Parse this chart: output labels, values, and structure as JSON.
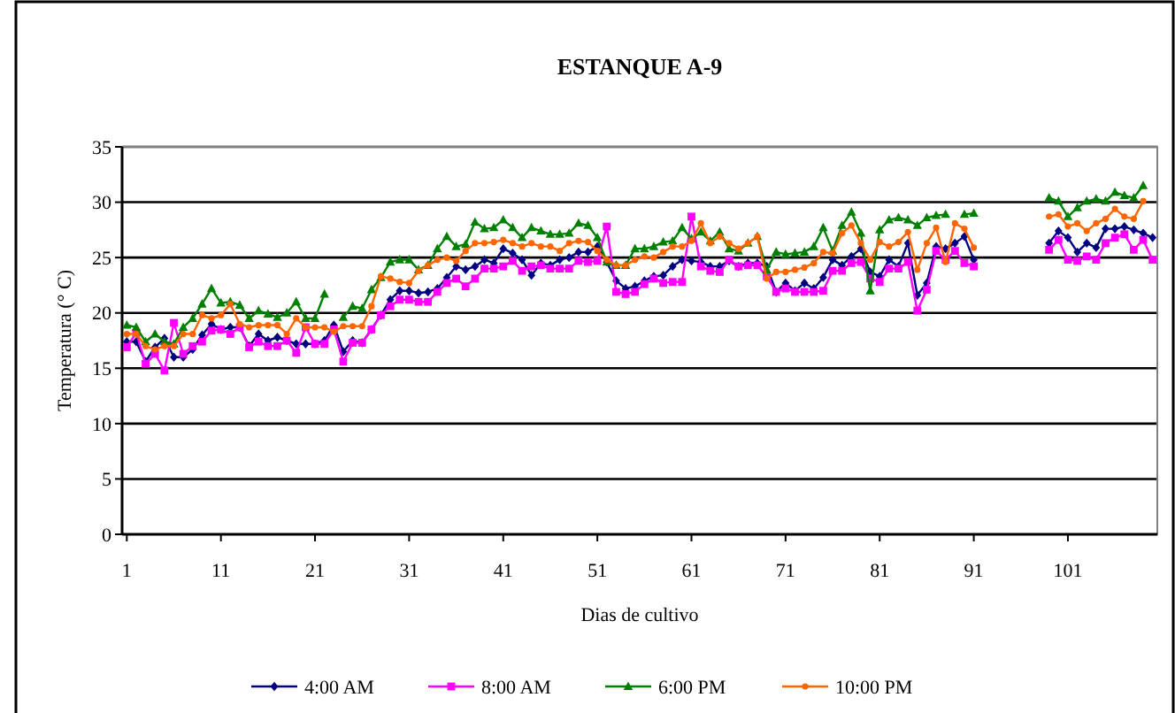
{
  "chart_data": {
    "type": "line",
    "title": "ESTANQUE A-9",
    "xlabel": "Dias de cultivo",
    "ylabel": "Temperatura (° C)",
    "x": [
      1,
      2,
      3,
      4,
      5,
      6,
      7,
      8,
      9,
      10,
      11,
      12,
      13,
      14,
      15,
      16,
      17,
      18,
      19,
      20,
      21,
      22,
      23,
      24,
      25,
      26,
      27,
      28,
      29,
      30,
      31,
      32,
      33,
      34,
      35,
      36,
      37,
      38,
      39,
      40,
      41,
      42,
      43,
      44,
      45,
      46,
      47,
      48,
      49,
      50,
      51,
      52,
      53,
      54,
      55,
      56,
      57,
      58,
      59,
      60,
      61,
      62,
      63,
      64,
      65,
      66,
      67,
      68,
      69,
      70,
      71,
      72,
      73,
      74,
      75,
      76,
      77,
      78,
      79,
      80,
      81,
      82,
      83,
      84,
      85,
      86,
      87,
      88,
      89,
      90,
      91,
      92,
      93,
      94,
      95,
      96,
      97,
      98,
      99,
      100,
      101,
      102,
      103,
      104,
      105,
      106,
      107,
      108,
      109,
      110
    ],
    "xlim": [
      0.5,
      110.5
    ],
    "xticks": [
      1,
      11,
      21,
      31,
      41,
      51,
      61,
      71,
      81,
      91,
      101
    ],
    "ylim": [
      0,
      35
    ],
    "yticks": [
      0,
      5,
      10,
      15,
      20,
      25,
      30,
      35
    ],
    "grid": "y",
    "legend": "bottom",
    "line_style": "solid",
    "series": [
      {
        "name": "4:00 AM",
        "color": "#000080",
        "marker": "diamond",
        "values": [
          17.4,
          17.4,
          15.6,
          16.9,
          17.7,
          16,
          16,
          16.7,
          18,
          19,
          18.5,
          18.7,
          18.7,
          17,
          18.1,
          17.5,
          17.8,
          17.5,
          17.2,
          17.2,
          17.2,
          17.5,
          18.9,
          16.5,
          17.5,
          17.3,
          18.5,
          19.8,
          21.2,
          22,
          22,
          21.8,
          21.9,
          22.2,
          23.2,
          24.2,
          23.9,
          24.2,
          24.8,
          24.5,
          25.8,
          25.4,
          24.8,
          23.4,
          24.5,
          24.3,
          24.8,
          25,
          25.5,
          25.5,
          26,
          24.6,
          22.9,
          22.2,
          22.4,
          22.9,
          23.3,
          23.4,
          24.2,
          24.8,
          24.7,
          24.6,
          24.2,
          24.2,
          24.7,
          24.2,
          24.5,
          24.5,
          24.2,
          21.9,
          22.7,
          22,
          22.7,
          22.2,
          23.2,
          24.8,
          24.3,
          25.1,
          25.8,
          23.7,
          23.3,
          24.8,
          24.2,
          26.3,
          21.6,
          22.7,
          26,
          25.8,
          26.3,
          26.9,
          24.8,
          null,
          null,
          null,
          null,
          null,
          null,
          null,
          26.3,
          27.4,
          26.8,
          25.5,
          26.3,
          25.9,
          27.6,
          27.6,
          27.8,
          27.5,
          27.2,
          26.8
        ]
      },
      {
        "name": "8:00 AM",
        "color": "#ff00ff",
        "marker": "square",
        "values": [
          16.9,
          18.2,
          15.4,
          16.3,
          14.8,
          19.1,
          16.3,
          17,
          17.4,
          18.4,
          18.5,
          18.1,
          18.7,
          16.9,
          17.4,
          17,
          17,
          17.5,
          16.4,
          18.7,
          17.2,
          17.2,
          18.5,
          15.6,
          17.3,
          17.3,
          18.5,
          19.8,
          20.6,
          21.2,
          21.2,
          21,
          21,
          21.9,
          22.7,
          23.1,
          22.4,
          23.1,
          24,
          24,
          24.2,
          24.7,
          23.8,
          24.2,
          24.3,
          24,
          24,
          24,
          24.7,
          24.6,
          24.7,
          27.8,
          21.9,
          21.7,
          21.9,
          22.6,
          23.1,
          22.7,
          22.8,
          22.8,
          28.7,
          24.2,
          23.8,
          23.7,
          24.8,
          24.2,
          24.3,
          24.3,
          23.3,
          21.9,
          22.2,
          21.9,
          21.9,
          21.9,
          22,
          23.8,
          23.8,
          24.5,
          24.6,
          23.1,
          22.8,
          24,
          24,
          24.6,
          20.2,
          22.1,
          25.6,
          24.8,
          25.6,
          24.5,
          24.2,
          null,
          null,
          null,
          null,
          null,
          null,
          null,
          25.7,
          26.6,
          24.8,
          24.7,
          25.1,
          24.8,
          26.3,
          26.8,
          27.1,
          25.7,
          26.6,
          24.8
        ]
      },
      {
        "name": "6:00 PM",
        "color": "#008000",
        "marker": "triangle",
        "values": [
          18.9,
          18.7,
          17.4,
          18.1,
          17.4,
          17.2,
          18.7,
          19.5,
          20.8,
          22.2,
          20.9,
          21,
          20.7,
          19.5,
          20.2,
          19.9,
          19.6,
          20,
          21,
          19.5,
          19.5,
          21.7,
          null,
          19.6,
          20.6,
          20.4,
          22.1,
          23.2,
          24.6,
          24.8,
          24.8,
          23.9,
          24.3,
          25.8,
          26.9,
          26,
          26.2,
          28.2,
          27.6,
          27.7,
          28.4,
          27.7,
          26.8,
          27.7,
          27.4,
          27.1,
          27.1,
          27.2,
          28.1,
          27.9,
          26.8,
          24.6,
          24.3,
          24.3,
          25.8,
          25.8,
          26,
          26.4,
          26.5,
          27.7,
          26.7,
          27.3,
          26.5,
          27.3,
          25.8,
          25.6,
          26.3,
          26.9,
          23.9,
          25.5,
          25.3,
          25.4,
          25.5,
          26,
          27.7,
          25.6,
          27.9,
          29.1,
          27.2,
          22,
          27.5,
          28.4,
          28.6,
          28.4,
          27.9,
          28.6,
          28.8,
          28.9,
          null,
          28.9,
          29,
          null,
          null,
          null,
          null,
          null,
          null,
          null,
          30.4,
          30.1,
          28.7,
          29.5,
          30.1,
          30.3,
          30.1,
          30.9,
          30.6,
          30.4,
          31.5,
          null
        ]
      },
      {
        "name": "10:00 PM",
        "color": "#ff6600",
        "marker": "circle",
        "values": [
          18.1,
          18.1,
          17,
          16.7,
          17,
          17,
          18.1,
          18.1,
          19.8,
          19.5,
          19.8,
          20.8,
          19,
          18.7,
          18.9,
          18.9,
          18.9,
          18.1,
          19.5,
          18.7,
          18.7,
          18.7,
          18.3,
          18.8,
          18.8,
          18.8,
          20.6,
          23.3,
          23.1,
          22.8,
          22.7,
          23.8,
          24.3,
          24.8,
          25,
          24.7,
          25.6,
          26.3,
          26.3,
          26.4,
          26.6,
          26.3,
          26,
          26.3,
          26,
          26,
          25.6,
          26.3,
          26.5,
          26.4,
          25.6,
          24.8,
          24.3,
          24.3,
          24.8,
          25.1,
          25,
          25.5,
          26,
          26,
          26.5,
          28.1,
          26.3,
          26.9,
          26.3,
          25.8,
          26.3,
          26.9,
          23.1,
          23.7,
          23.7,
          23.9,
          24.1,
          24.5,
          25.5,
          25.4,
          27.2,
          27.9,
          26.3,
          24.8,
          26.4,
          26,
          26.4,
          27.3,
          23.9,
          26.3,
          27.7,
          24.6,
          28.1,
          27.6,
          25.9,
          null,
          null,
          null,
          null,
          null,
          null,
          null,
          28.7,
          28.9,
          27.8,
          28.1,
          27.4,
          28.1,
          28.5,
          29.4,
          28.7,
          28.5,
          30.1,
          null
        ]
      }
    ]
  }
}
